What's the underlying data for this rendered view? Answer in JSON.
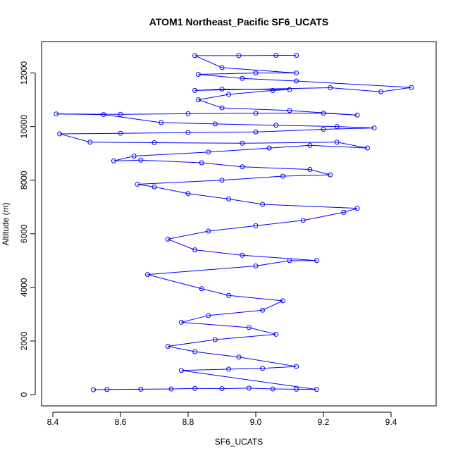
{
  "chart_data": {
    "type": "line",
    "title": "ATOM1 Northeast_Pacific SF6_UCATS",
    "xlabel": "SF6_UCATS",
    "ylabel": "Altitude (m)",
    "xlim": [
      8.4,
      9.5
    ],
    "ylim": [
      0,
      12700
    ],
    "x_ticks": [
      "8.4",
      "8.6",
      "8.8",
      "9.0",
      "9.2",
      "9.4"
    ],
    "y_ticks": [
      "0",
      "2000",
      "4000",
      "6000",
      "8000",
      "10000",
      "12000"
    ],
    "grid": false,
    "legend": "none",
    "marker": "open-circle",
    "series": [
      {
        "color": "#0000ff",
        "points": [
          [
            8.52,
            180
          ],
          [
            8.56,
            190
          ],
          [
            8.66,
            200
          ],
          [
            8.75,
            210
          ],
          [
            8.82,
            230
          ],
          [
            8.9,
            220
          ],
          [
            8.98,
            240
          ],
          [
            9.05,
            210
          ],
          [
            9.12,
            200
          ],
          [
            9.18,
            190
          ],
          [
            8.78,
            900
          ],
          [
            8.92,
            950
          ],
          [
            9.02,
            980
          ],
          [
            9.12,
            1050
          ],
          [
            8.95,
            1400
          ],
          [
            8.82,
            1600
          ],
          [
            8.74,
            1800
          ],
          [
            8.88,
            2050
          ],
          [
            9.06,
            2250
          ],
          [
            8.98,
            2500
          ],
          [
            8.78,
            2700
          ],
          [
            8.86,
            2950
          ],
          [
            9.02,
            3150
          ],
          [
            9.08,
            3500
          ],
          [
            8.92,
            3700
          ],
          [
            8.84,
            3950
          ],
          [
            8.68,
            4480
          ],
          [
            9.0,
            4800
          ],
          [
            9.1,
            5000
          ],
          [
            9.18,
            5000
          ],
          [
            8.96,
            5200
          ],
          [
            8.82,
            5400
          ],
          [
            8.74,
            5800
          ],
          [
            8.86,
            6100
          ],
          [
            9.0,
            6300
          ],
          [
            9.14,
            6500
          ],
          [
            9.26,
            6800
          ],
          [
            9.3,
            6950
          ],
          [
            9.02,
            7100
          ],
          [
            8.92,
            7300
          ],
          [
            8.8,
            7500
          ],
          [
            8.7,
            7750
          ],
          [
            8.65,
            7850
          ],
          [
            8.9,
            8000
          ],
          [
            9.08,
            8150
          ],
          [
            9.22,
            8200
          ],
          [
            9.16,
            8400
          ],
          [
            8.96,
            8500
          ],
          [
            8.84,
            8650
          ],
          [
            8.66,
            8750
          ],
          [
            8.58,
            8720
          ],
          [
            8.64,
            8900
          ],
          [
            8.86,
            9050
          ],
          [
            9.04,
            9200
          ],
          [
            9.16,
            9300
          ],
          [
            9.33,
            9200
          ],
          [
            9.24,
            9420
          ],
          [
            8.96,
            9380
          ],
          [
            8.7,
            9400
          ],
          [
            8.51,
            9420
          ],
          [
            8.42,
            9730
          ],
          [
            8.6,
            9750
          ],
          [
            8.8,
            9780
          ],
          [
            9.0,
            9800
          ],
          [
            9.2,
            9900
          ],
          [
            9.35,
            9950
          ],
          [
            9.24,
            10000
          ],
          [
            9.06,
            10050
          ],
          [
            8.88,
            10100
          ],
          [
            8.72,
            10150
          ],
          [
            8.55,
            10450
          ],
          [
            8.41,
            10470
          ],
          [
            8.6,
            10460
          ],
          [
            8.8,
            10480
          ],
          [
            9.0,
            10500
          ],
          [
            9.2,
            10500
          ],
          [
            9.3,
            10430
          ],
          [
            9.1,
            10600
          ],
          [
            8.9,
            10700
          ],
          [
            8.83,
            11000
          ],
          [
            8.92,
            11200
          ],
          [
            9.05,
            11350
          ],
          [
            9.1,
            11380
          ],
          [
            8.9,
            11400
          ],
          [
            8.82,
            11350
          ],
          [
            9.22,
            11450
          ],
          [
            9.37,
            11300
          ],
          [
            9.46,
            11460
          ],
          [
            9.12,
            11700
          ],
          [
            8.96,
            11800
          ],
          [
            8.83,
            11950
          ],
          [
            9.0,
            12000
          ],
          [
            9.12,
            12000
          ],
          [
            8.9,
            12200
          ],
          [
            8.82,
            12650
          ],
          [
            8.95,
            12650
          ],
          [
            9.06,
            12660
          ],
          [
            9.12,
            12660
          ]
        ]
      }
    ]
  }
}
